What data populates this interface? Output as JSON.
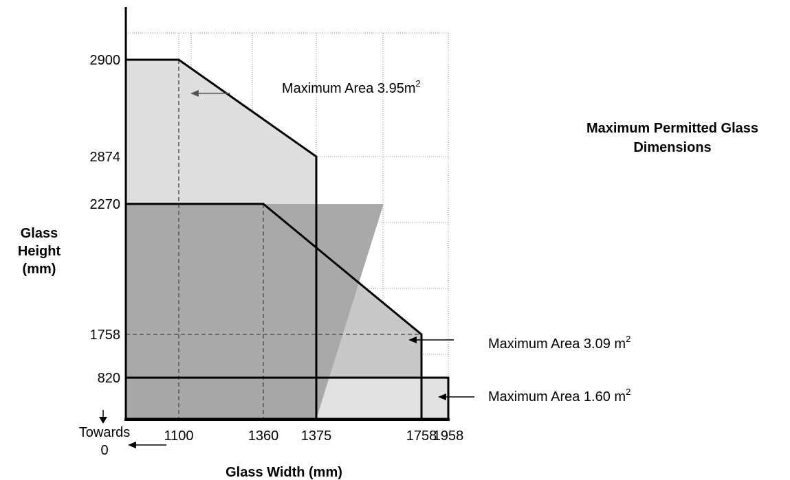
{
  "chart_data": {
    "type": "area",
    "title_lines": [
      "Maximum Permitted Glass",
      "Dimensions"
    ],
    "xlabel": "Glass Width (mm)",
    "ylabel_lines": [
      "Glass",
      "Height",
      "(mm)"
    ],
    "x_ticks": [
      "1100",
      "1360",
      "1375",
      "1758",
      "1958"
    ],
    "y_ticks": [
      "2900",
      "2874",
      "2270",
      "1758",
      "820"
    ],
    "origin_note": [
      "Towards",
      "0"
    ],
    "grid": true,
    "series": [
      {
        "label_prefix": "Maximum Area ",
        "label_value": "3.95m",
        "label_sup": "2",
        "fill": "#dedede",
        "points": [
          [
            0,
            2900
          ],
          [
            1100,
            2900
          ],
          [
            1375,
            2874
          ],
          [
            1375,
            0
          ],
          [
            0,
            0
          ]
        ]
      },
      {
        "label_prefix": "Maximum Area ",
        "label_value": "3.09 m",
        "label_sup": "2",
        "fill": "#c8c8c8",
        "points": [
          [
            0,
            2270
          ],
          [
            1360,
            2270
          ],
          [
            1758,
            1758
          ],
          [
            1758,
            0
          ],
          [
            0,
            0
          ]
        ]
      },
      {
        "label_prefix": "Maximum Area ",
        "label_value": "1.60 m",
        "label_sup": "2",
        "fill": "#f5f5f5",
        "points": [
          [
            0,
            820
          ],
          [
            1958,
            820
          ],
          [
            1958,
            0
          ],
          [
            0,
            0
          ]
        ]
      }
    ],
    "reference_lines": [
      {
        "axis": "x",
        "value": 1100
      },
      {
        "axis": "x",
        "value": 1360
      },
      {
        "axis": "y",
        "value": 1758
      }
    ]
  },
  "colors": {
    "overlap_fill": "#a9a9a9",
    "outline": "#000000",
    "grid": "#8c8c8c",
    "reference": "#555555"
  }
}
